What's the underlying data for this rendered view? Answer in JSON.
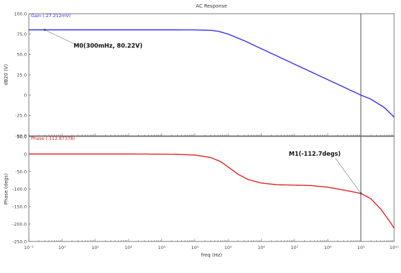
{
  "title": "AC Response",
  "colors": {
    "gain": "#2d2df0",
    "phase": "#e02020",
    "frame": "#555555",
    "cursor": "#444444"
  },
  "chart_data": [
    {
      "type": "line",
      "xscale": "log",
      "xlim": [
        0.1,
        10000000000
      ],
      "ylim": [
        -50,
        100
      ],
      "yticks": [
        100,
        75,
        50,
        25,
        0,
        -25,
        -50
      ],
      "ytick_labels": [
        "100.0",
        "75.0",
        "50.0",
        "25.0",
        "0",
        "-25.0",
        "-50.0"
      ],
      "ylabel": "dB20 (V)",
      "legend": "Gain  (-27.212mV)",
      "series": [
        {
          "name": "Gain",
          "x": [
            0.1,
            0.3,
            1,
            10,
            100,
            1000,
            10000,
            30000,
            50000,
            100000,
            300000,
            1000000,
            10000000,
            100000000,
            1000000000,
            2000000000,
            5000000000,
            10000000000
          ],
          "y": [
            80.22,
            80.22,
            80.22,
            80.22,
            80.22,
            80.22,
            80.1,
            79.6,
            78.5,
            75,
            67,
            57,
            38,
            19,
            0,
            -5,
            -15,
            -27
          ]
        }
      ],
      "markers": [
        {
          "label": "M0(300mHz, 80.22V)",
          "x": 0.3,
          "y": 80.22
        }
      ]
    },
    {
      "type": "line",
      "xscale": "log",
      "xlim": [
        0.1,
        10000000000
      ],
      "ylim": [
        -250,
        50
      ],
      "yticks": [
        50,
        0,
        -50,
        -100,
        -150,
        -200,
        -250
      ],
      "ytick_labels": [
        "50.0",
        "0",
        "-50.0",
        "-100.0",
        "-150.0",
        "-200.0",
        "-250.0"
      ],
      "ylabel": "Phase (degs)",
      "xlabel": "freq (Hz)",
      "xtick_labels": [
        "10-1",
        "100",
        "101",
        "102",
        "103",
        "104",
        "105",
        "106",
        "107",
        "108",
        "109",
        "1010"
      ],
      "legend": "Phase  (-112.87378)",
      "series": [
        {
          "name": "Phase",
          "x": [
            0.1,
            1,
            10,
            100,
            1000,
            3000,
            10000,
            30000,
            60000,
            100000,
            200000,
            400000,
            1000000,
            3000000,
            10000000,
            30000000,
            100000000,
            300000000,
            1000000000,
            2000000000,
            4000000000,
            7000000000,
            10000000000
          ],
          "y": [
            0,
            0,
            0,
            0,
            -0.5,
            -1,
            -3,
            -10,
            -22,
            -37,
            -58,
            -73,
            -83,
            -88,
            -89,
            -90,
            -95,
            -103,
            -112.7,
            -128,
            -158,
            -190,
            -212
          ]
        }
      ],
      "markers": [
        {
          "label": "M1(-112.7degs)",
          "x": 1000000000,
          "y": -112.7
        }
      ]
    }
  ]
}
